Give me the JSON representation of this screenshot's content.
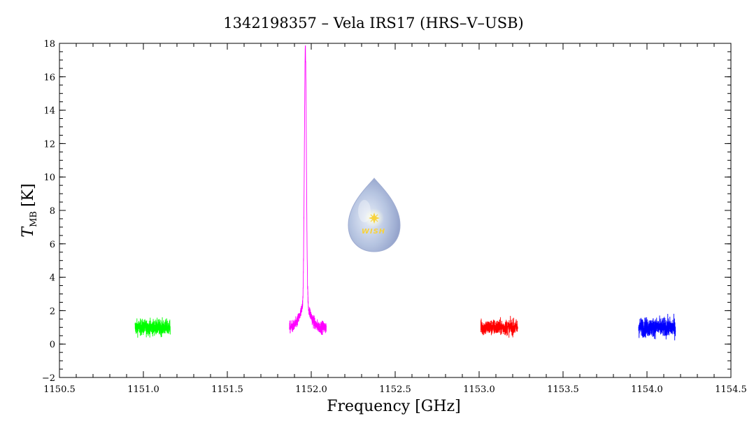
{
  "chart_data": {
    "type": "line",
    "title": "1342198357 – Vela IRS17 (HRS–V–USB)",
    "xlabel": "Frequency [GHz]",
    "ylabel": {
      "main": "T",
      "sub": "MB",
      "unit": "[K]"
    },
    "xlim": [
      1150.5,
      1154.5
    ],
    "ylim": [
      -2,
      18
    ],
    "x_ticks": [
      "1150.5",
      "1151.0",
      "1151.5",
      "1152.0",
      "1152.5",
      "1153.0",
      "1153.5",
      "1154.0",
      "1154.5"
    ],
    "y_ticks": [
      "−2",
      "0",
      "2",
      "4",
      "6",
      "8",
      "10",
      "12",
      "14",
      "16",
      "18"
    ],
    "grid": false,
    "logo_text": "WISH",
    "series": [
      {
        "color": "#00ff00",
        "x_range": [
          1150.95,
          1151.16
        ],
        "baseline": 1.0,
        "noise": 0.45,
        "peak": null
      },
      {
        "color": "#ff00ff",
        "x_range": [
          1151.87,
          1152.09
        ],
        "baseline": 1.0,
        "noise": 0.35,
        "peak": {
          "center": 1151.965,
          "height": 15.4,
          "width": 0.006,
          "wing_height": 1.3,
          "wing_width": 0.03
        }
      },
      {
        "color": "#ff0000",
        "x_range": [
          1153.01,
          1153.23
        ],
        "baseline": 1.0,
        "noise": 0.45,
        "peak": null
      },
      {
        "color": "#0000ff",
        "x_range": [
          1153.95,
          1154.17
        ],
        "baseline": 1.0,
        "noise": 0.55,
        "peak": null
      }
    ]
  }
}
